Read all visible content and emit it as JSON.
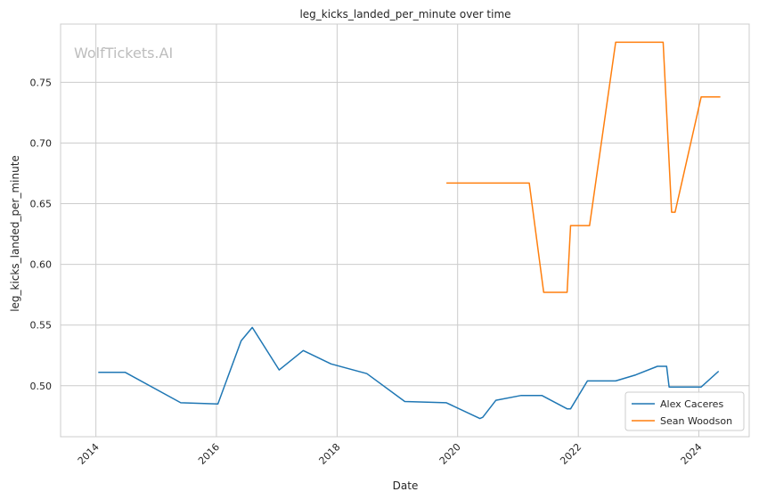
{
  "chart_data": {
    "type": "line",
    "title": "leg_kicks_landed_per_minute over time",
    "xlabel": "Date",
    "ylabel": "leg_kicks_landed_per_minute",
    "xlim": [
      "2013-06-01",
      "2024-11-01"
    ],
    "ylim": [
      0.458,
      0.798
    ],
    "x_ticks": [
      "2014",
      "2016",
      "2018",
      "2020",
      "2022",
      "2024"
    ],
    "y_ticks": [
      "0.50",
      "0.55",
      "0.60",
      "0.65",
      "0.70",
      "0.75"
    ],
    "grid": true,
    "legend_position": "lower-right",
    "watermark": "WolfTickets.AI",
    "series": [
      {
        "name": "Alex Caceres",
        "color": "#1f77b4",
        "points": [
          [
            "2014-01-15",
            0.511
          ],
          [
            "2014-06-28",
            0.511
          ],
          [
            "2015-05-30",
            0.486
          ],
          [
            "2016-01-10",
            0.485
          ],
          [
            "2016-05-30",
            0.537
          ],
          [
            "2016-08-05",
            0.548
          ],
          [
            "2017-01-15",
            0.513
          ],
          [
            "2017-06-10",
            0.529
          ],
          [
            "2017-11-25",
            0.518
          ],
          [
            "2018-06-30",
            0.51
          ],
          [
            "2019-02-15",
            0.487
          ],
          [
            "2019-10-25",
            0.486
          ],
          [
            "2020-05-15",
            0.473
          ],
          [
            "2020-06-01",
            0.474
          ],
          [
            "2020-08-20",
            0.488
          ],
          [
            "2021-01-20",
            0.492
          ],
          [
            "2021-05-25",
            0.492
          ],
          [
            "2021-10-25",
            0.481
          ],
          [
            "2021-11-15",
            0.481
          ],
          [
            "2022-02-25",
            0.504
          ],
          [
            "2022-08-15",
            0.504
          ],
          [
            "2022-12-15",
            0.509
          ],
          [
            "2023-04-25",
            0.516
          ],
          [
            "2023-06-20",
            0.516
          ],
          [
            "2023-07-05",
            0.499
          ],
          [
            "2024-01-15",
            0.499
          ],
          [
            "2024-04-30",
            0.512
          ]
        ]
      },
      {
        "name": "Sean Woodson",
        "color": "#ff7f0e",
        "points": [
          [
            "2019-10-25",
            0.667
          ],
          [
            "2021-03-10",
            0.667
          ],
          [
            "2021-06-05",
            0.577
          ],
          [
            "2021-10-25",
            0.577
          ],
          [
            "2021-11-15",
            0.632
          ],
          [
            "2022-03-10",
            0.632
          ],
          [
            "2022-08-15",
            0.783
          ],
          [
            "2023-05-30",
            0.783
          ],
          [
            "2023-07-20",
            0.643
          ],
          [
            "2023-08-10",
            0.643
          ],
          [
            "2024-01-15",
            0.738
          ],
          [
            "2024-05-10",
            0.738
          ]
        ]
      }
    ]
  }
}
